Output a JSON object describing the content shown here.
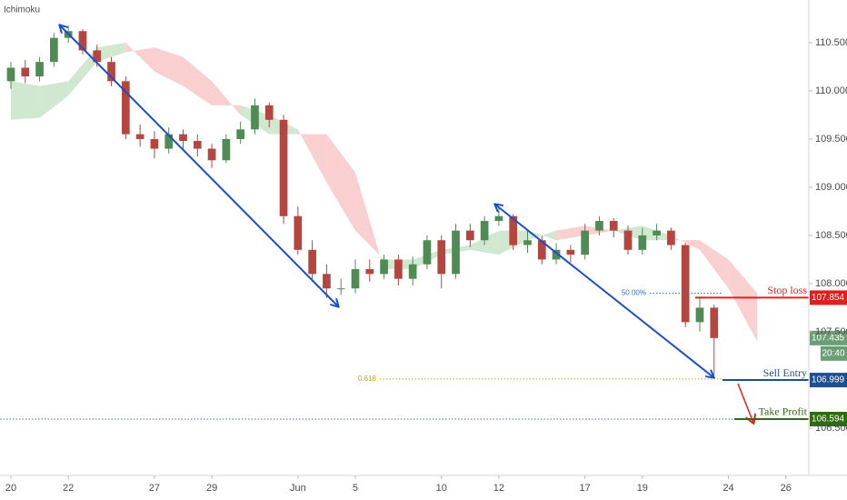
{
  "chart_data": {
    "type": "candlestick",
    "title": "Ichimoku",
    "x": [
      0,
      0.5,
      1,
      1.5,
      2,
      2.5,
      3,
      3.5,
      4,
      4.5,
      5,
      5.5,
      6,
      6.5,
      7,
      7.5,
      8,
      8.5,
      9,
      9.5,
      10,
      10.5,
      11,
      11.5,
      12,
      12.5,
      13,
      13.5,
      14,
      14.5,
      15,
      15.5,
      16,
      16.5,
      17,
      17.5,
      18,
      18.5,
      19,
      19.5,
      20,
      20.5,
      21,
      21.5,
      22,
      22.5,
      23,
      23.5,
      24,
      24.5
    ],
    "open": [
      110.1,
      110.24,
      110.15,
      110.3,
      110.55,
      110.62,
      110.42,
      110.3,
      110.1,
      109.55,
      109.5,
      109.4,
      109.55,
      109.48,
      109.4,
      109.28,
      109.5,
      109.6,
      109.85,
      109.7,
      108.7,
      108.35,
      108.1,
      107.95,
      107.95,
      108.15,
      108.1,
      108.25,
      108.05,
      108.2,
      108.45,
      108.1,
      108.55,
      108.45,
      108.65,
      108.7,
      108.4,
      108.45,
      108.25,
      108.35,
      108.3,
      108.55,
      108.65,
      108.55,
      108.35,
      108.5,
      108.55,
      108.4,
      107.6,
      107.75
    ],
    "high": [
      110.3,
      110.32,
      110.35,
      110.6,
      110.68,
      110.64,
      110.48,
      110.35,
      110.15,
      109.65,
      109.58,
      109.62,
      109.6,
      109.55,
      109.45,
      109.55,
      109.68,
      109.92,
      109.88,
      109.75,
      108.8,
      108.45,
      108.2,
      108.05,
      108.25,
      108.25,
      108.3,
      108.3,
      108.28,
      108.5,
      108.5,
      108.62,
      108.62,
      108.7,
      108.8,
      108.72,
      108.55,
      108.5,
      108.42,
      108.4,
      108.62,
      108.7,
      108.68,
      108.6,
      108.58,
      108.62,
      108.58,
      108.42,
      107.85,
      107.78
    ],
    "low": [
      110.02,
      110.08,
      110.1,
      110.25,
      110.5,
      110.38,
      110.25,
      110.05,
      109.5,
      109.42,
      109.3,
      109.35,
      109.4,
      109.32,
      109.2,
      109.25,
      109.45,
      109.55,
      109.62,
      108.62,
      108.3,
      108.02,
      107.85,
      107.88,
      107.9,
      108.02,
      108.05,
      107.98,
      107.98,
      108.15,
      107.95,
      108.05,
      108.38,
      108.4,
      108.6,
      108.35,
      108.32,
      108.2,
      108.2,
      108.22,
      108.25,
      108.5,
      108.48,
      108.3,
      108.3,
      108.45,
      108.35,
      107.55,
      107.5,
      107.05
    ],
    "close": [
      110.24,
      110.15,
      110.3,
      110.55,
      110.62,
      110.42,
      110.3,
      110.1,
      109.55,
      109.5,
      109.4,
      109.55,
      109.48,
      109.4,
      109.28,
      109.5,
      109.6,
      109.85,
      109.7,
      108.7,
      108.35,
      108.1,
      107.95,
      107.95,
      108.15,
      108.1,
      108.25,
      108.05,
      108.2,
      108.45,
      108.1,
      108.55,
      108.45,
      108.65,
      108.7,
      108.4,
      108.45,
      108.25,
      108.35,
      108.3,
      108.55,
      108.65,
      108.55,
      108.35,
      108.5,
      108.55,
      108.4,
      107.6,
      107.75,
      107.435
    ],
    "up_color": "#4e8b55",
    "down_color": "#b4453f",
    "xlim": [
      -0.38,
      27.8
    ],
    "ylim": [
      106.009,
      110.943
    ],
    "xticks": [
      {
        "value": 0,
        "label": "20"
      },
      {
        "value": 2,
        "label": "22"
      },
      {
        "value": 5,
        "label": "27"
      },
      {
        "value": 7,
        "label": "29"
      },
      {
        "value": 10,
        "label": "Jun"
      },
      {
        "value": 12,
        "label": "5"
      },
      {
        "value": 15,
        "label": "10"
      },
      {
        "value": 17,
        "label": "12"
      },
      {
        "value": 20,
        "label": "17"
      },
      {
        "value": 22,
        "label": "19"
      },
      {
        "value": 25,
        "label": "24"
      },
      {
        "value": 27,
        "label": "26"
      }
    ],
    "yticks": [
      {
        "value": 110.5,
        "label": "110.500"
      },
      {
        "value": 110,
        "label": "110.000"
      },
      {
        "value": 109.5,
        "label": "109.500"
      },
      {
        "value": 109,
        "label": "109.000"
      },
      {
        "value": 108.5,
        "label": "108.500"
      },
      {
        "value": 108,
        "label": "108.000"
      },
      {
        "value": 107.5,
        "label": "107.500"
      },
      {
        "value": 106.5,
        "label": "106.500"
      }
    ],
    "grid": false,
    "cloud": {
      "x": [
        0,
        1,
        2,
        3,
        4,
        5,
        6,
        7,
        8,
        9,
        10,
        11,
        12,
        13,
        14,
        15,
        16,
        17,
        18,
        19,
        20,
        21,
        22,
        23,
        24,
        25,
        26
      ],
      "span_a": [
        110.1,
        110.05,
        110.1,
        110.45,
        110.5,
        110.2,
        110.05,
        109.85,
        109.85,
        109.75,
        109.6,
        109.05,
        108.55,
        108.25,
        108.25,
        108.35,
        108.4,
        108.55,
        108.55,
        108.45,
        108.5,
        108.55,
        108.6,
        108.5,
        108.35,
        107.95,
        107.4
      ],
      "span_b": [
        109.7,
        109.72,
        109.95,
        110.3,
        110.4,
        110.45,
        110.35,
        110.1,
        109.75,
        109.55,
        109.55,
        109.55,
        109.15,
        108.15,
        108.15,
        108.3,
        108.35,
        108.3,
        108.45,
        108.55,
        108.6,
        108.55,
        108.45,
        108.45,
        108.45,
        108.25,
        107.9
      ],
      "bull_color": "#cfe8cf",
      "bear_color": "#f9cfcf"
    },
    "countdown": "20:40",
    "levels": [
      {
        "name": "Stop loss",
        "value": 107.854,
        "color": "#e0201f"
      },
      {
        "name": "Sell Entry",
        "value": 106.999,
        "color": "#1d4f91"
      },
      {
        "name": "Take Profit",
        "value": 106.594,
        "color": "#2f6b12"
      }
    ],
    "fib": [
      {
        "label": "50.00%",
        "value": 107.9,
        "color": "#3a6fc4"
      },
      {
        "label": "0.618",
        "value": 107.01,
        "color": "#c9a227"
      }
    ]
  }
}
